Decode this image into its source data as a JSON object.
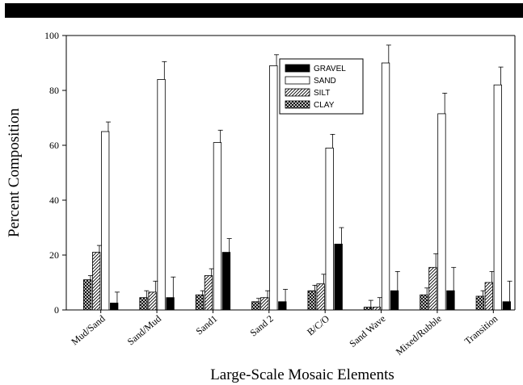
{
  "chart_data": {
    "type": "bar",
    "title": "",
    "xlabel": "Large-Scale Mosaic Elements",
    "ylabel": "Percent Composition",
    "ylim": [
      0,
      100
    ],
    "yticks": [
      0,
      20,
      40,
      60,
      80,
      100
    ],
    "categories": [
      "Mud/Sand",
      "Sand/Mud",
      "Sand1",
      "Sand 2",
      "B/C/O",
      "Sand Wave",
      "Mixed/Rubble",
      "Transition"
    ],
    "legend_position": "top-center",
    "series": [
      {
        "name": "CLAY",
        "pattern": "crosshatch",
        "values": [
          11,
          4.5,
          5.5,
          3,
          7,
          1,
          5.5,
          5
        ],
        "errors": [
          1.5,
          2.5,
          1.5,
          1.2,
          2,
          2.5,
          2.5,
          2
        ]
      },
      {
        "name": "SILT",
        "pattern": "diagonal",
        "values": [
          21,
          6.5,
          12.5,
          4.5,
          9.5,
          1,
          15.5,
          10
        ],
        "errors": [
          2.5,
          4,
          2.5,
          2.5,
          3.5,
          3.5,
          5,
          4
        ]
      },
      {
        "name": "SAND",
        "pattern": "white",
        "values": [
          65,
          84,
          61,
          89,
          59,
          90,
          71.5,
          82
        ],
        "errors": [
          3.5,
          6.5,
          4.5,
          4,
          5,
          6.5,
          7.5,
          6.5
        ]
      },
      {
        "name": "GRAVEL",
        "pattern": "black",
        "values": [
          2.5,
          4.5,
          21,
          3,
          24,
          7,
          7,
          3
        ],
        "errors": [
          4,
          7.5,
          5,
          4.5,
          6,
          7,
          8.5,
          7.5
        ]
      }
    ],
    "legend_order": [
      "GRAVEL",
      "SAND",
      "SILT",
      "CLAY"
    ]
  }
}
